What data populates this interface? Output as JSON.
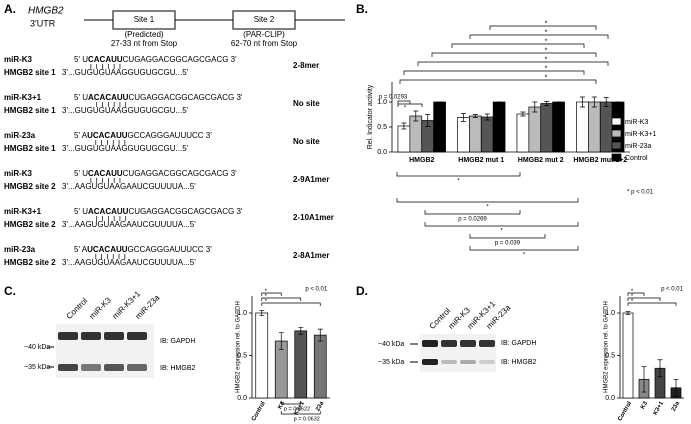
{
  "panel_a": {
    "label": "A.",
    "gene": "HMGB2",
    "region": "3'UTR",
    "sites": [
      {
        "name": "Site 1",
        "source": "(Predicted)",
        "position": "27-33 nt from Stop"
      },
      {
        "name": "Site 2",
        "source": "(PAR-CLIP)",
        "position": "62-70 nt from Stop"
      }
    ],
    "alignments": [
      {
        "mirna": "miR-K3",
        "target": "HMGB2 site 1",
        "mirna_seq": [
          "5' U",
          "CACAUU",
          "CUGAGGACGGCAGCGACG 3'"
        ],
        "target_seq": "3'...GUGUGUAAGGUGUGCGU...5'",
        "site_type": "2-8mer"
      },
      {
        "mirna": "miR-K3+1",
        "target": "HMGB2 site 1",
        "mirna_seq": [
          "5' U",
          "ACACAUU",
          "CUGAGGACGGCAGCGACG 3'"
        ],
        "target_seq": "3'...GUGUGUAAGGUGUGCGU...5'",
        "site_type": "No site"
      },
      {
        "mirna": "miR-23a",
        "target": "HMGB2 site 1",
        "mirna_seq": [
          "5' A",
          "UCACAUU",
          "GCCAGGGAUUUCC 3'"
        ],
        "target_seq": "3'...GUGUGUAAGGUGUGCGU...5'",
        "site_type": "No site"
      },
      {
        "mirna": "miR-K3",
        "target": "HMGB2 site 2",
        "mirna_seq": [
          "5' U",
          "CACAUU",
          "CUGAGGACGGCAGCGACG 3'"
        ],
        "target_seq": "3'...AAGUGUAAGAAUCGUUUUA...5'",
        "site_type": "2-9A1mer"
      },
      {
        "mirna": "miR-K3+1",
        "target": "HMGB2 site 2",
        "mirna_seq": [
          "5' U",
          "ACACAUU",
          "CUGAGGACGGCAGCGACG 3'"
        ],
        "target_seq": "3'...AAGUGUAAGAAUCGUUUUA...5'",
        "site_type": "2-10A1mer"
      },
      {
        "mirna": "miR-23a",
        "target": "HMGB2 site 2",
        "mirna_seq": [
          "5' A",
          "UCACAUU",
          "GCCAGGGAUUUCC 3'"
        ],
        "target_seq": "3'...AAGUGUAAGAAUCGUUUUA...5'",
        "site_type": "2-8A1mer"
      }
    ]
  },
  "chart_data": [
    {
      "type": "bar",
      "panel": "B.",
      "y_label": "Rel. Indicator activity",
      "categories": [
        "HMGB2",
        "HMGB2 mut 1",
        "HMGB2 mut 2",
        "HMGB2 mut 1+2"
      ],
      "series": [
        {
          "name": "miR-K3",
          "color": "#ffffff",
          "values": [
            0.52,
            0.69,
            0.76,
            1.0
          ],
          "errors": [
            0.06,
            0.08,
            0.04,
            0.1
          ]
        },
        {
          "name": "miR-K3+1",
          "color": "#bbbbbb",
          "values": [
            0.72,
            0.72,
            0.9,
            1.0
          ],
          "errors": [
            0.1,
            0.03,
            0.1,
            0.1
          ]
        },
        {
          "name": "miR-23a",
          "color": "#555555",
          "values": [
            0.63,
            0.7,
            0.97,
            1.0
          ],
          "errors": [
            0.12,
            0.06,
            0.04,
            0.09
          ]
        },
        {
          "name": "Control",
          "color": "#000000",
          "values": [
            1.0,
            1.0,
            1.0,
            1.0
          ],
          "errors": [
            0,
            0,
            0,
            0
          ]
        }
      ],
      "ylim": [
        0,
        1.4
      ],
      "yticks": [
        {
          "value": 0,
          "label": "0.0"
        },
        {
          "value": 0.5,
          "label": "0.5"
        },
        {
          "value": 1,
          "label": "1.0"
        }
      ],
      "legend": "right",
      "significance_top": [
        "*",
        "*",
        "*",
        "*",
        "*",
        "*",
        "*"
      ],
      "significance_inline": [
        "p = 0.0293",
        "*"
      ],
      "significance_bottom": [
        "*",
        "*",
        "p = 0.0269",
        "*",
        "p = 0.039",
        "*"
      ],
      "note": "* p < 0.01"
    },
    {
      "type": "bar",
      "y_label": "HMGB2 expression rel. to GAPDH",
      "categories": [
        "Control",
        "K3",
        "K3+1",
        "23a"
      ],
      "values": [
        1.0,
        0.67,
        0.79,
        0.74
      ],
      "errors": [
        0.03,
        0.1,
        0.04,
        0.07
      ],
      "colors": [
        "#ffffff",
        "#999999",
        "#555555",
        "#777777"
      ],
      "ylim": [
        0,
        1.2
      ],
      "yticks": [
        {
          "value": 0,
          "label": "0.0"
        },
        {
          "value": 0.5,
          "label": "0.5"
        },
        {
          "value": 1,
          "label": "1.0"
        }
      ],
      "significance_top": [
        "*",
        "*",
        "*",
        "p < 0.01"
      ],
      "significance_bottom": [
        "p = 0.0622",
        "p = 0.0632"
      ]
    },
    {
      "type": "bar",
      "y_label": "HMGB2 expression rel. to GAPDH",
      "categories": [
        "Control",
        "K3",
        "K3+1",
        "23a"
      ],
      "values": [
        1.0,
        0.22,
        0.35,
        0.12
      ],
      "errors": [
        0.02,
        0.15,
        0.1,
        0.1
      ],
      "colors": [
        "#ffffff",
        "#888888",
        "#444444",
        "#222222"
      ],
      "ylim": [
        0,
        1.2
      ],
      "yticks": [
        {
          "value": 0,
          "label": "0.0"
        },
        {
          "value": 0.5,
          "label": "0.5"
        },
        {
          "value": 1,
          "label": "1.0"
        }
      ],
      "significance_top": [
        "*",
        "*",
        "*",
        "p < 0.01"
      ]
    }
  ],
  "blots": [
    {
      "panel": "C.",
      "lanes": [
        "Control",
        "miR-K3",
        "miR-K3+1",
        "miR-23a"
      ],
      "markers": [
        "~40 kDa",
        "~35 kDa"
      ],
      "probes": [
        "IB: GAPDH",
        "IB: HMGB2"
      ]
    },
    {
      "panel": "D.",
      "lanes": [
        "Control",
        "miR-K3",
        "miR-K3+1",
        "miR-23a"
      ],
      "markers": [
        "~40 kDa",
        "~35 kDa"
      ],
      "probes": [
        "IB: GAPDH",
        "IB: HMGB2"
      ]
    }
  ]
}
